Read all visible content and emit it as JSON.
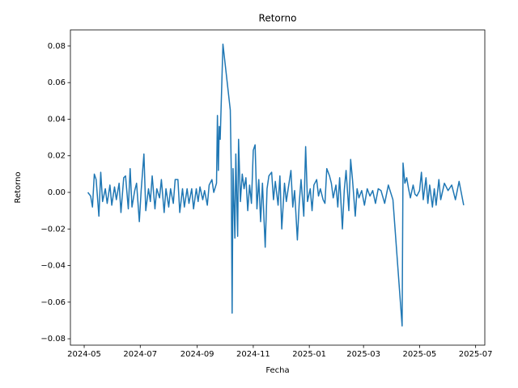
{
  "chart_data": {
    "type": "line",
    "title": "Retorno",
    "x_label": "Fecha",
    "y_label": "Retorno",
    "x": [
      19848,
      19851,
      19853,
      19855,
      19857,
      19860,
      19862,
      19864,
      19867,
      19869,
      19872,
      19874,
      19877,
      19879,
      19882,
      19884,
      19887,
      19889,
      19892,
      19894,
      19896,
      19899,
      19901,
      19904,
      19906,
      19909,
      19911,
      19914,
      19916,
      19918,
      19921,
      19923,
      19926,
      19928,
      19931,
      19933,
      19936,
      19938,
      19941,
      19943,
      19946,
      19948,
      19951,
      19953,
      19956,
      19958,
      19961,
      19963,
      19966,
      19968,
      19970,
      19973,
      19975,
      19978,
      19980,
      19983,
      19985,
      19988,
      19989,
      19990,
      19991,
      19992,
      19995,
      20003,
      20004,
      20005,
      20006,
      20008,
      20009,
      20011,
      20012,
      20014,
      20016,
      20018,
      20020,
      20022,
      20024,
      20026,
      20028,
      20030,
      20032,
      20034,
      20036,
      20038,
      20041,
      20043,
      20045,
      20048,
      20050,
      20052,
      20055,
      20057,
      20059,
      20062,
      20064,
      20066,
      20069,
      20071,
      20073,
      20076,
      20078,
      20080,
      20083,
      20085,
      20087,
      20090,
      20092,
      20094,
      20097,
      20099,
      20101,
      20104,
      20106,
      20108,
      20111,
      20113,
      20115,
      20118,
      20120,
      20122,
      20125,
      20127,
      20129,
      20132,
      20134,
      20136,
      20139,
      20141,
      20143,
      20146,
      20149,
      20152,
      20155,
      20158,
      20161,
      20164,
      20167,
      20171,
      20175,
      20180,
      20190,
      20191,
      20193,
      20195,
      20197,
      20199,
      20202,
      20204,
      20206,
      20209,
      20211,
      20213,
      20216,
      20218,
      20220,
      20223,
      20225,
      20227,
      20230,
      20232,
      20236,
      20240,
      20244,
      20248,
      20252,
      20257
    ],
    "series": [
      {
        "name": "Retorno",
        "color": "#1f77b4",
        "values": [
          0.0,
          -0.002,
          -0.008,
          0.01,
          0.007,
          -0.013,
          0.011,
          -0.005,
          0.002,
          -0.006,
          0.004,
          -0.007,
          0.003,
          -0.004,
          0.005,
          -0.011,
          0.008,
          0.009,
          -0.009,
          0.013,
          -0.008,
          0.001,
          0.005,
          -0.016,
          0.001,
          0.021,
          -0.01,
          0.002,
          -0.005,
          0.009,
          -0.009,
          0.002,
          -0.003,
          0.007,
          -0.011,
          0.002,
          -0.008,
          0.002,
          -0.006,
          0.007,
          0.007,
          -0.011,
          0.002,
          -0.008,
          0.002,
          -0.006,
          0.002,
          -0.009,
          0.002,
          -0.005,
          0.003,
          -0.004,
          0.001,
          -0.007,
          0.004,
          0.007,
          0.0,
          0.005,
          0.042,
          0.012,
          0.036,
          0.029,
          0.081,
          0.045,
          0.013,
          -0.066,
          0.013,
          -0.025,
          0.021,
          -0.024,
          0.029,
          -0.005,
          0.01,
          0.002,
          0.008,
          -0.01,
          0.004,
          -0.006,
          0.023,
          0.026,
          -0.009,
          0.007,
          -0.016,
          0.005,
          -0.03,
          0.002,
          0.009,
          0.011,
          -0.004,
          0.006,
          -0.007,
          0.009,
          -0.02,
          0.005,
          -0.005,
          0.002,
          0.012,
          -0.008,
          0.001,
          -0.026,
          -0.006,
          0.007,
          -0.013,
          0.025,
          -0.005,
          0.002,
          -0.01,
          0.004,
          0.007,
          -0.002,
          0.002,
          -0.004,
          -0.006,
          0.013,
          0.009,
          0.005,
          -0.003,
          0.004,
          -0.008,
          0.008,
          -0.02,
          0.001,
          0.012,
          -0.01,
          0.018,
          0.007,
          -0.013,
          0.002,
          -0.003,
          0.001,
          -0.007,
          0.002,
          -0.002,
          0.001,
          -0.006,
          0.002,
          0.001,
          -0.006,
          0.004,
          -0.004,
          -0.073,
          0.016,
          0.005,
          0.008,
          0.002,
          -0.003,
          0.004,
          -0.001,
          -0.002,
          0.001,
          0.011,
          -0.004,
          0.008,
          -0.006,
          0.004,
          -0.008,
          0.002,
          -0.007,
          0.007,
          -0.004,
          0.005,
          0.001,
          0.004,
          -0.004,
          0.006,
          -0.007
        ]
      }
    ],
    "xlim": [
      19829,
      20280
    ],
    "xticks": [
      {
        "value": 19844,
        "label": "2024-05"
      },
      {
        "value": 19905,
        "label": "2024-07"
      },
      {
        "value": 19967,
        "label": "2024-09"
      },
      {
        "value": 20028,
        "label": "2024-11"
      },
      {
        "value": 20089,
        "label": "2025-01"
      },
      {
        "value": 20148,
        "label": "2025-03"
      },
      {
        "value": 20209,
        "label": "2025-05"
      },
      {
        "value": 20270,
        "label": "2025-07"
      }
    ],
    "ylim": [
      -0.0835,
      0.0888
    ],
    "yticks": [
      {
        "value": -0.08,
        "label": "−0.08"
      },
      {
        "value": -0.06,
        "label": "−0.06"
      },
      {
        "value": -0.04,
        "label": "−0.04"
      },
      {
        "value": -0.02,
        "label": "−0.02"
      },
      {
        "value": 0,
        "label": "0.00"
      },
      {
        "value": 0.02,
        "label": "0.02"
      },
      {
        "value": 0.04,
        "label": "0.04"
      },
      {
        "value": 0.06,
        "label": "0.06"
      },
      {
        "value": 0.08,
        "label": "0.08"
      }
    ],
    "grid": false
  }
}
